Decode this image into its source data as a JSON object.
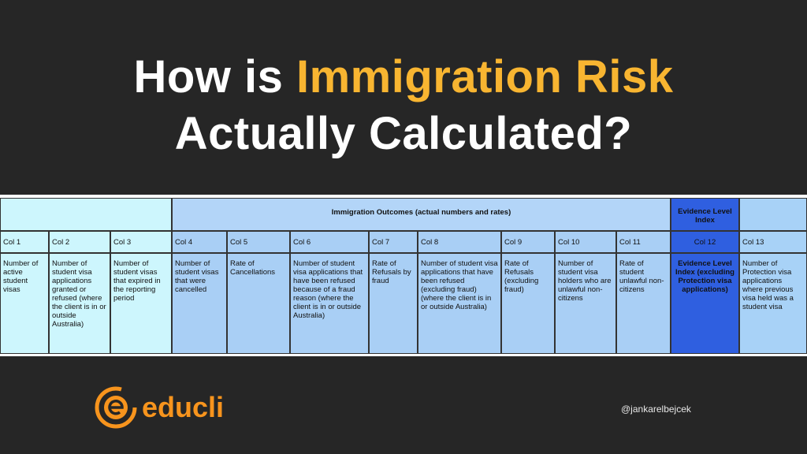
{
  "title": {
    "prefix": "How is",
    "highlight": "Immigration Risk",
    "line2": "Actually Calculated?"
  },
  "table": {
    "group_headers": [
      "Immigration Outcomes (actual numbers and rates)",
      "Evidence Level Index"
    ],
    "columns": [
      {
        "label": "Col 1",
        "description": "Number of active student visas"
      },
      {
        "label": "Col 2",
        "description": "Number of student visa applications granted or refused (where the client is in or outside Australia)"
      },
      {
        "label": "Col 3",
        "description": "Number of student visas that expired in the reporting period"
      },
      {
        "label": "Col 4",
        "description": "Number of student visas that were cancelled"
      },
      {
        "label": "Col 5",
        "description": "Rate of Cancellations"
      },
      {
        "label": "Col 6",
        "description": "Number of student visa applications that have been refused because of a fraud reason (where the client is in or outside Australia)"
      },
      {
        "label": "Col 7",
        "description": "Rate of Refusals by fraud"
      },
      {
        "label": "Col 8",
        "description": "Number of student visa applications that have been refused (excluding fraud) (where the client is in or outside Australia)"
      },
      {
        "label": "Col 9",
        "description": "Rate of Refusals (excluding fraud)"
      },
      {
        "label": "Col 10",
        "description": "Number of student visa holders who are unlawful non-citizens"
      },
      {
        "label": "Col 11",
        "description": "Rate of student unlawful non-citizens"
      },
      {
        "label": "Col 12",
        "description": "Evidence Level Index (excluding Protection visa applications)"
      },
      {
        "label": "Col 13",
        "description": "Number of Protection visa applications where previous visa held was a student visa"
      }
    ]
  },
  "footer": {
    "brand": "educli",
    "handle": "@jankarelbejcek"
  }
}
